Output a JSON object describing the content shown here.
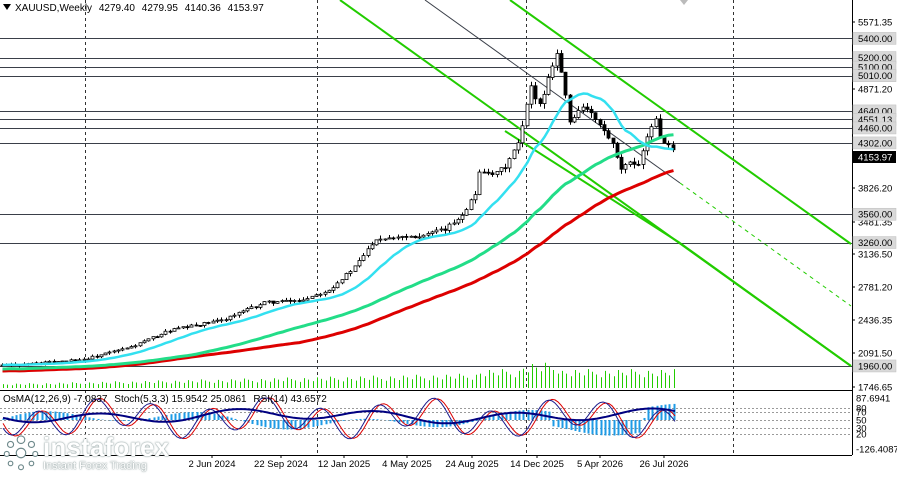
{
  "header": {
    "symbol": "XAUUSD,Weekly",
    "open": "4279.40",
    "high": "4279.95",
    "low": "4140.36",
    "close": "4153.97"
  },
  "indicators_header": {
    "osma": "OsMA(12,26,9) -7.0837",
    "stoch": "Stoch(5,3,3) 15.9542 25.0861",
    "rsi": "RSI(14) 43.6572"
  },
  "logo": {
    "brand": "instaforex",
    "tagline": "Instant Forex Trading"
  },
  "chart_data": {
    "type": "candlestick",
    "symbol": "XAUUSD",
    "timeframe": "Weekly",
    "current_price": 4153.97,
    "price_axis_ticks": [
      5571.35,
      4871.2,
      3826.2,
      3481.35,
      3136.5,
      2781.2,
      2436.35,
      2091.5,
      1746.65
    ],
    "price_axis_ylim": [
      1746.65,
      5700
    ],
    "horizontal_levels": [
      {
        "value": 5400.0,
        "label": "5400.00",
        "color": "#d9d9d9"
      },
      {
        "value": 5200.0,
        "label": "5200.00",
        "color": "#d9d9d9"
      },
      {
        "value": 5100.0,
        "label": "5100.00",
        "color": "#d9d9d9"
      },
      {
        "value": 5010.0,
        "label": "5010.00",
        "color": "#d9d9d9"
      },
      {
        "value": 4640.0,
        "label": "4640.00",
        "color": "#d9d9d9"
      },
      {
        "value": 4551.13,
        "label": "4551.13",
        "color": "#d9d9d9"
      },
      {
        "value": 4460.0,
        "label": "4460.00",
        "color": "#d9d9d9"
      },
      {
        "value": 4302.0,
        "label": "4302.00",
        "color": "#d9d9d9"
      },
      {
        "value": 3560.0,
        "label": "3560.00",
        "color": "#d9d9d9"
      },
      {
        "value": 3260.0,
        "label": "3260.00",
        "color": "#d9d9d9"
      },
      {
        "value": 1960.0,
        "label": "1960.00",
        "color": "#d9d9d9"
      }
    ],
    "current_price_label": "4153.97",
    "time_axis_labels": [
      "2 Jun 2024",
      "22 Sep 2024",
      "12 Jan 2025",
      "4 May 2025",
      "24 Aug 2025",
      "14 Dec 2025",
      "5 Apr 2026",
      "26 Jul 2026"
    ],
    "moving_averages": [
      {
        "color": "#33e0f0",
        "role": "fast"
      },
      {
        "color": "#22dd88",
        "role": "medium"
      },
      {
        "color": "#dd0000",
        "role": "slow"
      }
    ],
    "trend_channel_color": "#22cc00",
    "volume_color": "#22cc00",
    "indicator_pane": {
      "ticks": [
        "87.6941",
        "80",
        "70",
        "50",
        "30",
        "20",
        "-126.4087"
      ],
      "osma_color": "#1e9be6",
      "stoch_main_color": "#1a1a8c",
      "stoch_signal_color": "#dd0000",
      "rsi_color": "#000080",
      "current": {
        "osma": -7.0837,
        "stoch_main": 15.9542,
        "stoch_signal": 25.0861,
        "rsi": 43.6572
      }
    }
  }
}
